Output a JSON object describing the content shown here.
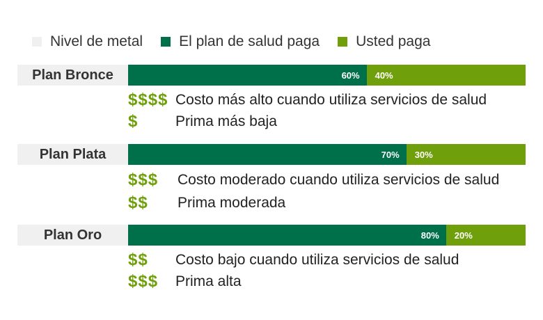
{
  "legend": {
    "metal": {
      "label": "Nivel de metal",
      "color": "#f0f0f0"
    },
    "plan_pays": {
      "label": "El plan de salud paga",
      "color": "#00704a"
    },
    "you_pay": {
      "label": "Usted paga",
      "color": "#6f9f0a"
    }
  },
  "plans": [
    {
      "name": "Plan Bronce",
      "plan_pays_label": "60%",
      "you_pay_label": "40%",
      "cost_symbol": "$$$$",
      "cost_text": "Costo más alto cuando utiliza servicios de salud",
      "premium_symbol": "$",
      "premium_text": "Prima más baja"
    },
    {
      "name": "Plan Plata",
      "plan_pays_label": "70%",
      "you_pay_label": "30%",
      "cost_symbol": "$$$",
      "cost_text": "Costo moderado cuando utiliza servicios de salud",
      "premium_symbol": "$$",
      "premium_text": "Prima moderada"
    },
    {
      "name": "Plan Oro",
      "plan_pays_label": "80%",
      "you_pay_label": "20%",
      "cost_symbol": "$$",
      "cost_text": "Costo bajo cuando utiliza servicios de salud",
      "premium_symbol": "$$$",
      "premium_text": "Prima alta"
    }
  ],
  "chart_data": {
    "type": "bar",
    "orientation": "horizontal",
    "stacked": true,
    "categories": [
      "Plan Bronce",
      "Plan Plata",
      "Plan Oro"
    ],
    "series": [
      {
        "name": "El plan de salud paga",
        "values": [
          60,
          70,
          80
        ],
        "color": "#00704a"
      },
      {
        "name": "Usted paga",
        "values": [
          40,
          30,
          20
        ],
        "color": "#6f9f0a"
      }
    ],
    "xlim": [
      0,
      100
    ],
    "legend_position": "top"
  }
}
